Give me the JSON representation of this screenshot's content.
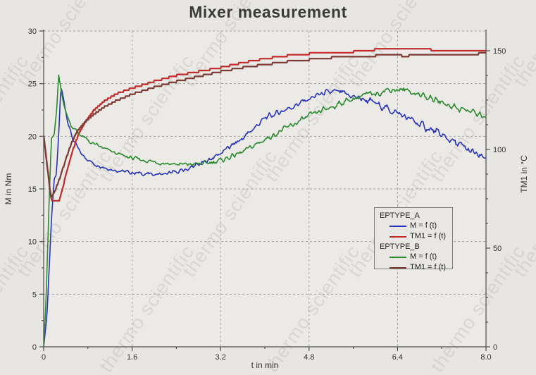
{
  "title": "Mixer measurement",
  "watermark": {
    "text": "thermo scientific",
    "color": "#a8a49e",
    "opacity": 0.28
  },
  "colors": {
    "background": "#e8e6e3",
    "plot_background": "#eceae7",
    "grid": "#a3a3a3",
    "spine": "#4d4d4d",
    "text": "#333333",
    "title": "#3a3a3a",
    "eptype_a_m": "#2733b8",
    "eptype_a_tm1": "#c32a2a",
    "eptype_b_m": "#2a8a2e",
    "eptype_b_tm1": "#7b3a33"
  },
  "chart_data": {
    "type": "line",
    "title": "Mixer measurement",
    "xlabel": "t in min",
    "ylabel_left": "M in Nm",
    "ylabel_right": "TM1 in °C",
    "grid": "dashed",
    "legend_position": "right-middle",
    "axes": {
      "x": {
        "min": 0,
        "max": 8,
        "tick_labels": [
          "0",
          "1.6",
          "3.2",
          "4.8",
          "6.4",
          "8.0"
        ],
        "tick_values": [
          0,
          1.6,
          3.2,
          4.8,
          6.4,
          8.0
        ],
        "minor_step": 0.8
      },
      "y_left": {
        "min": 0,
        "max": 30,
        "tick_labels": [
          "0",
          "5",
          "10",
          "15",
          "20",
          "25",
          "30"
        ],
        "tick_values": [
          0,
          5,
          10,
          15,
          20,
          25,
          30
        ],
        "minor_step": 2.5
      },
      "y_right": {
        "min": 0,
        "max": 160,
        "tick_labels": [
          "0",
          "50",
          "100",
          "150"
        ],
        "tick_values": [
          0,
          50,
          100,
          150
        ],
        "minor_step": 12.5
      }
    },
    "legend": {
      "groups": [
        {
          "label": "EPTYPE_A",
          "entries": [
            {
              "label": "M = f (t)"
            },
            {
              "label": "TM1 = f (t)"
            }
          ]
        },
        {
          "label": "EPTYPE_B",
          "entries": [
            {
              "label": "M = f (t)"
            },
            {
              "label": "TM1 = f (t)"
            }
          ]
        }
      ]
    },
    "series": [
      {
        "name": "EPTYPE_A M = f (t)",
        "slug": "eptype-a-m",
        "axis": "left",
        "unit": "Nm",
        "color": "#2733b8",
        "style": "noisy",
        "width": 1.6,
        "points": [
          [
            0,
            0
          ],
          [
            0.06,
            3
          ],
          [
            0.14,
            12
          ],
          [
            0.19,
            15.9
          ],
          [
            0.23,
            16.3
          ],
          [
            0.28,
            21
          ],
          [
            0.31,
            24.7
          ],
          [
            0.36,
            23.6
          ],
          [
            0.43,
            21.5
          ],
          [
            0.52,
            19.8
          ],
          [
            0.68,
            18.3
          ],
          [
            0.9,
            17.4
          ],
          [
            1.2,
            16.9
          ],
          [
            1.5,
            16.6
          ],
          [
            1.9,
            16.4
          ],
          [
            2.2,
            16.4
          ],
          [
            2.5,
            16.7
          ],
          [
            2.9,
            17.5
          ],
          [
            3.2,
            18.4
          ],
          [
            3.6,
            19.8
          ],
          [
            4.0,
            21.7
          ],
          [
            4.4,
            22.6
          ],
          [
            4.7,
            23.3
          ],
          [
            5.0,
            24.0
          ],
          [
            5.3,
            24.2
          ],
          [
            5.5,
            23.9
          ],
          [
            5.8,
            23.5
          ],
          [
            6.1,
            22.9
          ],
          [
            6.4,
            22.2
          ],
          [
            6.7,
            21.4
          ],
          [
            7.0,
            20.6
          ],
          [
            7.3,
            19.8
          ],
          [
            7.6,
            18.9
          ],
          [
            8.0,
            17.7
          ]
        ]
      },
      {
        "name": "EPTYPE_A TM1 = f (t)",
        "slug": "eptype-a-tm1",
        "axis": "right",
        "unit": "°C",
        "color": "#c32a2a",
        "style": "stepped",
        "width": 2.2,
        "points": [
          [
            0,
            107
          ],
          [
            0.08,
            88
          ],
          [
            0.13,
            76
          ],
          [
            0.16,
            73.5
          ],
          [
            0.27,
            73.5
          ],
          [
            0.33,
            79
          ],
          [
            0.42,
            89
          ],
          [
            0.52,
            99
          ],
          [
            0.62,
            107
          ],
          [
            0.75,
            114
          ],
          [
            0.9,
            119.5
          ],
          [
            1.1,
            124.5
          ],
          [
            1.3,
            128
          ],
          [
            1.6,
            131
          ],
          [
            2.0,
            134.5
          ],
          [
            2.4,
            137.5
          ],
          [
            2.8,
            139.5
          ],
          [
            3.2,
            141.5
          ],
          [
            3.6,
            144
          ],
          [
            4.0,
            146
          ],
          [
            4.4,
            147.5
          ],
          [
            4.8,
            148.5
          ],
          [
            5.2,
            149
          ],
          [
            5.6,
            149.5
          ],
          [
            5.95,
            150
          ],
          [
            6.05,
            151.5
          ],
          [
            6.15,
            150.5
          ],
          [
            6.35,
            151
          ],
          [
            6.6,
            150.5
          ],
          [
            7.0,
            150.5
          ],
          [
            7.5,
            150
          ],
          [
            8.0,
            150
          ]
        ]
      },
      {
        "name": "EPTYPE_B M = f (t)",
        "slug": "eptype-b-m",
        "axis": "left",
        "unit": "Nm",
        "color": "#2a8a2e",
        "style": "noisy",
        "width": 1.6,
        "points": [
          [
            0,
            0
          ],
          [
            0.04,
            4
          ],
          [
            0.1,
            14
          ],
          [
            0.14,
            19.8
          ],
          [
            0.19,
            20.1
          ],
          [
            0.24,
            22.8
          ],
          [
            0.27,
            25.8
          ],
          [
            0.32,
            24.2
          ],
          [
            0.4,
            22.3
          ],
          [
            0.5,
            21.0
          ],
          [
            0.65,
            20.2
          ],
          [
            0.85,
            19.4
          ],
          [
            1.1,
            18.8
          ],
          [
            1.4,
            18.2
          ],
          [
            1.7,
            17.8
          ],
          [
            2.1,
            17.5
          ],
          [
            2.5,
            17.3
          ],
          [
            2.9,
            17.4
          ],
          [
            3.2,
            17.7
          ],
          [
            3.6,
            18.5
          ],
          [
            4.0,
            19.7
          ],
          [
            4.4,
            20.8
          ],
          [
            4.8,
            21.9
          ],
          [
            5.2,
            22.8
          ],
          [
            5.6,
            23.6
          ],
          [
            6.0,
            24.1
          ],
          [
            6.3,
            24.5
          ],
          [
            6.6,
            24.3
          ],
          [
            6.9,
            23.8
          ],
          [
            7.2,
            23.2
          ],
          [
            7.5,
            22.7
          ],
          [
            7.8,
            22.2
          ],
          [
            8.0,
            21.9
          ]
        ]
      },
      {
        "name": "EPTYPE_B TM1 = f (t)",
        "slug": "eptype-b-tm1",
        "axis": "right",
        "unit": "°C",
        "color": "#7b3a33",
        "style": "stepped",
        "width": 2.2,
        "points": [
          [
            0,
            107
          ],
          [
            0.07,
            90
          ],
          [
            0.11,
            80
          ],
          [
            0.14,
            76
          ],
          [
            0.2,
            78.5
          ],
          [
            0.3,
            86
          ],
          [
            0.4,
            95
          ],
          [
            0.5,
            103
          ],
          [
            0.6,
            109
          ],
          [
            0.75,
            114
          ],
          [
            0.9,
            117.5
          ],
          [
            1.1,
            121.5
          ],
          [
            1.3,
            124.5
          ],
          [
            1.6,
            128
          ],
          [
            2.0,
            131.5
          ],
          [
            2.4,
            134.5
          ],
          [
            2.8,
            137
          ],
          [
            3.2,
            139.5
          ],
          [
            3.6,
            141.5
          ],
          [
            4.0,
            143
          ],
          [
            4.4,
            144.5
          ],
          [
            4.8,
            145.5
          ],
          [
            5.2,
            146.5
          ],
          [
            5.6,
            147
          ],
          [
            6.0,
            147.5
          ],
          [
            6.3,
            148
          ],
          [
            6.55,
            147.3
          ],
          [
            6.75,
            148
          ],
          [
            7.2,
            148.3
          ],
          [
            7.6,
            148.3
          ],
          [
            8.0,
            148.6
          ]
        ]
      }
    ]
  }
}
